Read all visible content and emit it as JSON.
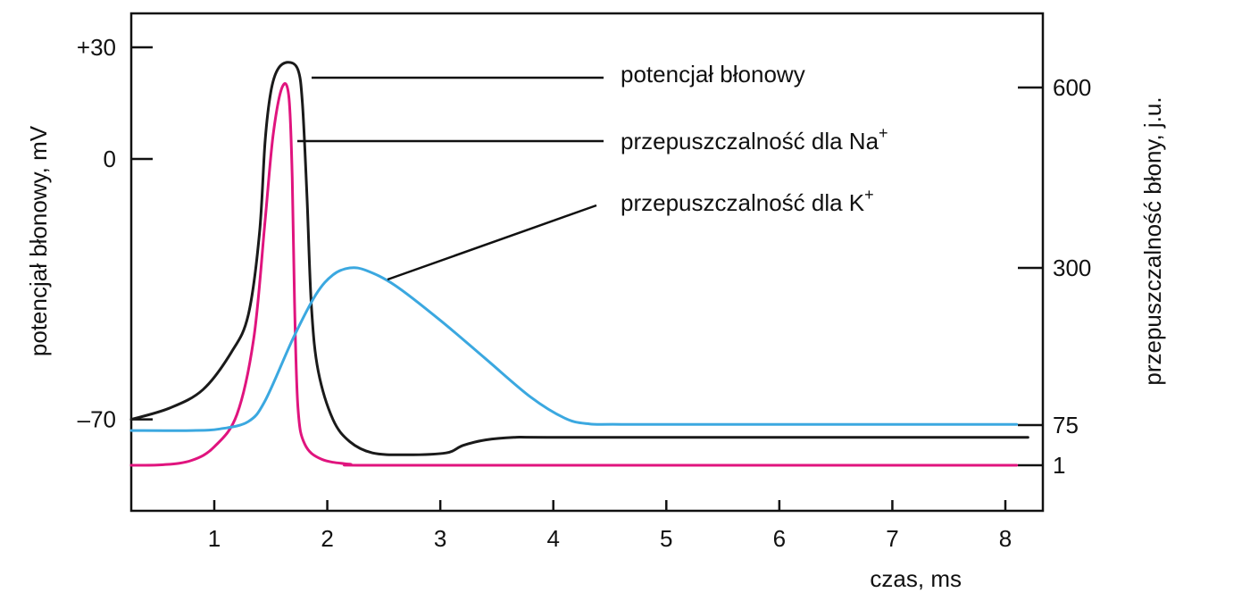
{
  "chart_data": {
    "type": "line",
    "title": "",
    "xlabel": "czas, ms",
    "ylabel_left": "potencjał błonowy, mV",
    "ylabel_right": "przepuszczalność błony, j.u.",
    "x_ticks": [
      "1",
      "2",
      "3",
      "4",
      "5",
      "6",
      "7",
      "8"
    ],
    "y_left_ticks": [
      "+30",
      "0",
      "–70"
    ],
    "y_right_ticks": [
      "600",
      "300",
      "75",
      "1"
    ],
    "xlim": [
      0.2,
      8.2
    ],
    "grid": false,
    "series": [
      {
        "key": "membrane",
        "axis": "left",
        "color": "#1a1a1a",
        "points": [
          [
            0.2,
            -70
          ],
          [
            0.6,
            -67
          ],
          [
            0.9,
            -62
          ],
          [
            1.15,
            -52
          ],
          [
            1.3,
            -42
          ],
          [
            1.4,
            -20
          ],
          [
            1.45,
            5
          ],
          [
            1.5,
            18
          ],
          [
            1.56,
            24
          ],
          [
            1.65,
            26
          ],
          [
            1.74,
            24
          ],
          [
            1.78,
            15
          ],
          [
            1.82,
            -10
          ],
          [
            1.86,
            -40
          ],
          [
            1.92,
            -57
          ],
          [
            2.05,
            -70
          ],
          [
            2.2,
            -76
          ],
          [
            2.4,
            -79
          ],
          [
            2.7,
            -79.5
          ],
          [
            3.05,
            -79
          ],
          [
            3.2,
            -77
          ],
          [
            3.4,
            -75.5
          ],
          [
            3.65,
            -74.8
          ],
          [
            4.0,
            -74.8
          ],
          [
            6.0,
            -74.8
          ],
          [
            8.2,
            -74.8
          ]
        ]
      },
      {
        "key": "na",
        "axis": "right",
        "color": "#e0147e",
        "points": [
          [
            0.2,
            1
          ],
          [
            0.55,
            2
          ],
          [
            0.8,
            10
          ],
          [
            1.0,
            35
          ],
          [
            1.2,
            90
          ],
          [
            1.35,
            200
          ],
          [
            1.45,
            380
          ],
          [
            1.52,
            520
          ],
          [
            1.6,
            600
          ],
          [
            1.66,
            585
          ],
          [
            1.69,
            450
          ],
          [
            1.71,
            250
          ],
          [
            1.74,
            100
          ],
          [
            1.8,
            40
          ],
          [
            1.95,
            12
          ],
          [
            2.2,
            3
          ],
          [
            2.4,
            1
          ],
          [
            5.0,
            1
          ],
          [
            8.1,
            1
          ]
        ]
      },
      {
        "key": "k",
        "axis": "right",
        "color": "#3ba8e0",
        "points": [
          [
            0.2,
            65
          ],
          [
            0.8,
            65
          ],
          [
            1.05,
            68
          ],
          [
            1.3,
            80
          ],
          [
            1.45,
            110
          ],
          [
            1.7,
            200
          ],
          [
            1.9,
            262
          ],
          [
            2.05,
            290
          ],
          [
            2.2,
            300
          ],
          [
            2.35,
            296
          ],
          [
            2.6,
            275
          ],
          [
            3.0,
            225
          ],
          [
            3.4,
            170
          ],
          [
            3.8,
            115
          ],
          [
            4.1,
            85
          ],
          [
            4.3,
            77
          ],
          [
            4.6,
            76
          ],
          [
            6.0,
            76
          ],
          [
            8.1,
            76
          ]
        ]
      }
    ],
    "annotations": [
      {
        "text": "potencjał błonowy",
        "sup": "",
        "target": "membrane"
      },
      {
        "text": "przepuszczalność dla Na",
        "sup": "+",
        "target": "na"
      },
      {
        "text": "przepuszczalność dla K",
        "sup": "+",
        "target": "k"
      }
    ]
  }
}
